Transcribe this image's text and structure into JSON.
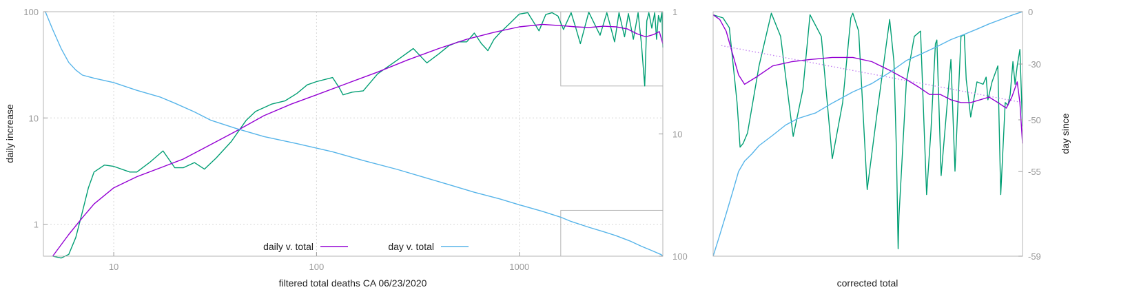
{
  "colors": {
    "daily": "#9400d3",
    "raw": "#009e73",
    "day": "#56b4e9",
    "trend": "#c27ff0",
    "inset": "#9a9a9a"
  },
  "chart_data": [
    {
      "type": "line",
      "id": "main",
      "title": "",
      "xlabel": "filtered total deaths CA 06/23/2020",
      "ylabel": "daily increase",
      "y2label": "",
      "x_scale": "log",
      "y_scale": "log",
      "y2_scale": "log",
      "y2_reversed": true,
      "xlim": [
        4.5,
        5100
      ],
      "ylim": [
        0.5,
        100
      ],
      "y2lim": [
        1,
        100
      ],
      "grid": true,
      "legend": "bottom-center",
      "x_ticks": [
        {
          "value": 10,
          "label": "10"
        },
        {
          "value": 100,
          "label": "100"
        },
        {
          "value": 1000,
          "label": "1000"
        }
      ],
      "y_ticks": [
        {
          "value": 1,
          "label": "1"
        },
        {
          "value": 10,
          "label": "10"
        },
        {
          "value": 100,
          "label": "100"
        }
      ],
      "y2_ticks": [
        {
          "value": 1,
          "label": "1"
        },
        {
          "value": 10,
          "label": "10"
        },
        {
          "value": 100,
          "label": "100"
        }
      ],
      "series": [
        {
          "name": "daily v. total",
          "color_key": "daily",
          "axis": "y",
          "x": [
            5,
            6,
            7,
            8,
            10,
            13,
            17,
            22,
            30,
            40,
            55,
            75,
            100,
            140,
            200,
            280,
            400,
            550,
            750,
            1000,
            1300,
            1600,
            1900,
            2200,
            2600,
            3000,
            3400,
            3800,
            4200,
            4600,
            4900,
            5100
          ],
          "y": [
            0.5,
            0.8,
            1.15,
            1.55,
            2.2,
            2.8,
            3.4,
            4.1,
            5.6,
            7.5,
            10.5,
            13.5,
            16.5,
            21,
            27,
            35,
            45,
            55,
            64,
            72,
            76,
            74,
            72,
            71,
            73,
            72,
            69,
            62,
            58,
            61,
            65,
            50
          ]
        },
        {
          "name": "",
          "color_key": "raw",
          "axis": "y",
          "x": [
            5,
            5.5,
            6,
            6.5,
            7,
            7.5,
            8,
            9,
            10,
            12,
            13,
            15,
            17.5,
            20,
            22,
            25,
            28,
            32,
            38,
            45,
            50,
            60,
            70,
            80,
            90,
            100,
            120,
            130,
            135,
            150,
            170,
            200,
            250,
            300,
            350,
            400,
            450,
            500,
            550,
            600,
            650,
            700,
            750,
            800,
            900,
            1000,
            1100,
            1250,
            1350,
            1450,
            1550,
            1650,
            1800,
            1900,
            2000,
            2200,
            2500,
            2700,
            2950,
            3100,
            3300,
            3450,
            3650,
            3850,
            4000,
            4150,
            4250,
            4350,
            4500,
            4650,
            4750,
            4850,
            4950,
            5050,
            5100
          ],
          "y": [
            0.5,
            0.48,
            0.52,
            0.75,
            1.3,
            2.2,
            3.1,
            3.6,
            3.5,
            3.1,
            3.1,
            3.8,
            4.9,
            3.4,
            3.4,
            3.8,
            3.3,
            4.2,
            6.0,
            9.5,
            11.5,
            13.5,
            14.5,
            17,
            20.5,
            22,
            24,
            19,
            16.5,
            17.5,
            18,
            26,
            35,
            45,
            33,
            40,
            48,
            52,
            52,
            63,
            50,
            43,
            55,
            63,
            78,
            95,
            98,
            66,
            94,
            98,
            91,
            68,
            98,
            70,
            50,
            99,
            60,
            98,
            52,
            98,
            58,
            96,
            55,
            98,
            50,
            20,
            82,
            98,
            70,
            98,
            55,
            92,
            80,
            98,
            46
          ]
        },
        {
          "name": "day v. total",
          "color_key": "day",
          "axis": "y2",
          "x": [
            4.6,
            5,
            5.5,
            6,
            6.5,
            7,
            8,
            10,
            13,
            17,
            20,
            25,
            30,
            40,
            55,
            80,
            120,
            170,
            250,
            350,
            450,
            600,
            800,
            1000,
            1300,
            1600,
            1800,
            2200,
            2600,
            3000,
            3500,
            4000,
            4500,
            5000,
            5100
          ],
          "y": [
            1,
            1.4,
            2.0,
            2.6,
            3.0,
            3.3,
            3.5,
            3.8,
            4.4,
            5.0,
            5.6,
            6.6,
            7.7,
            9.0,
            10.5,
            12.0,
            14.0,
            16.5,
            19.5,
            23,
            26,
            30,
            34,
            38,
            43,
            48,
            52,
            58,
            63,
            68,
            75,
            83,
            90,
            97,
            100
          ]
        }
      ],
      "inset_box": {
        "x": [
          1600,
          5100
        ],
        "y": [
          20,
          100
        ]
      },
      "inset_box_lower": {
        "x": [
          1600,
          5100
        ],
        "y": [
          0.5,
          1.35
        ]
      }
    },
    {
      "type": "line",
      "id": "zoom",
      "title": "",
      "xlabel": "corrected total",
      "ylabel": "",
      "y2label": "day since",
      "x_scale": "log",
      "y_scale": "log",
      "y2_reversed": true,
      "xlim": [
        1600,
        5100
      ],
      "ylim": [
        20,
        100
      ],
      "grid": false,
      "y2_ticks": [
        {
          "value": 0,
          "label": "0"
        },
        {
          "value": -30,
          "label": "-30"
        },
        {
          "value": -50,
          "label": "-50"
        },
        {
          "value": -55,
          "label": "-55"
        },
        {
          "value": -59,
          "label": "-59"
        }
      ],
      "series": [
        {
          "name": "",
          "color_key": "daily",
          "axis": "y",
          "x": [
            1600,
            1640,
            1680,
            1720,
            1760,
            1800,
            1880,
            2000,
            2150,
            2300,
            2500,
            2700,
            2900,
            3100,
            3300,
            3450,
            3600,
            3750,
            3900,
            4050,
            4200,
            4350,
            4500,
            4650,
            4800,
            4900,
            5000,
            5050,
            5100
          ],
          "y": [
            98,
            95,
            88,
            76,
            66,
            62,
            65,
            70,
            72,
            73,
            74,
            74,
            72,
            68,
            64,
            61,
            58,
            58,
            56,
            55,
            55,
            56,
            57,
            55,
            53,
            57,
            63,
            55,
            42
          ]
        },
        {
          "name": "",
          "color_key": "raw",
          "axis": "y",
          "x": [
            1600,
            1660,
            1700,
            1750,
            1770,
            1790,
            1820,
            1900,
            1990,
            2060,
            2160,
            2240,
            2300,
            2400,
            2500,
            2600,
            2680,
            2700,
            2760,
            2850,
            2960,
            3100,
            3150,
            3180,
            3200,
            3210,
            3300,
            3400,
            3480,
            3560,
            3620,
            3680,
            3700,
            3760,
            3900,
            3960,
            4050,
            4100,
            4130,
            4200,
            4300,
            4400,
            4450,
            4480,
            4550,
            4650,
            4700,
            4780,
            4830,
            4870,
            4920,
            4960,
            5000,
            5050,
            5100
          ],
          "y": [
            98,
            96,
            90,
            55,
            41,
            42,
            45,
            70,
            99,
            85,
            44,
            60,
            98,
            85,
            38,
            55,
            96,
            99,
            88,
            31,
            52,
            95,
            72,
            40,
            21,
            26,
            63,
            85,
            88,
            30,
            46,
            81,
            83,
            34,
            73,
            35,
            85,
            86,
            64,
            50,
            63,
            62,
            65,
            56,
            63,
            70,
            30,
            55,
            54,
            58,
            72,
            62,
            70,
            78,
            47
          ]
        },
        {
          "name": "",
          "color_key": "trend",
          "axis": "y",
          "dashed": true,
          "x": [
            1650,
            5100
          ],
          "y": [
            80,
            55
          ]
        },
        {
          "name": "",
          "color_key": "day",
          "axis": "y2",
          "x": [
            1600,
            1640,
            1680,
            1720,
            1760,
            1800,
            1850,
            1900,
            2000,
            2100,
            2200,
            2350,
            2500,
            2700,
            2900,
            3100,
            3300,
            3500,
            3700,
            3900,
            4100,
            4300,
            4500,
            4700,
            4900,
            5100
          ],
          "y": [
            -59,
            -58,
            -57,
            -56,
            -55,
            -54,
            -53.3,
            -52.5,
            -51.5,
            -50.5,
            -49.5,
            -47.5,
            -44,
            -40,
            -37,
            -33,
            -28,
            -24,
            -20,
            -16,
            -13,
            -10,
            -7,
            -4.5,
            -2,
            0
          ]
        }
      ]
    }
  ]
}
